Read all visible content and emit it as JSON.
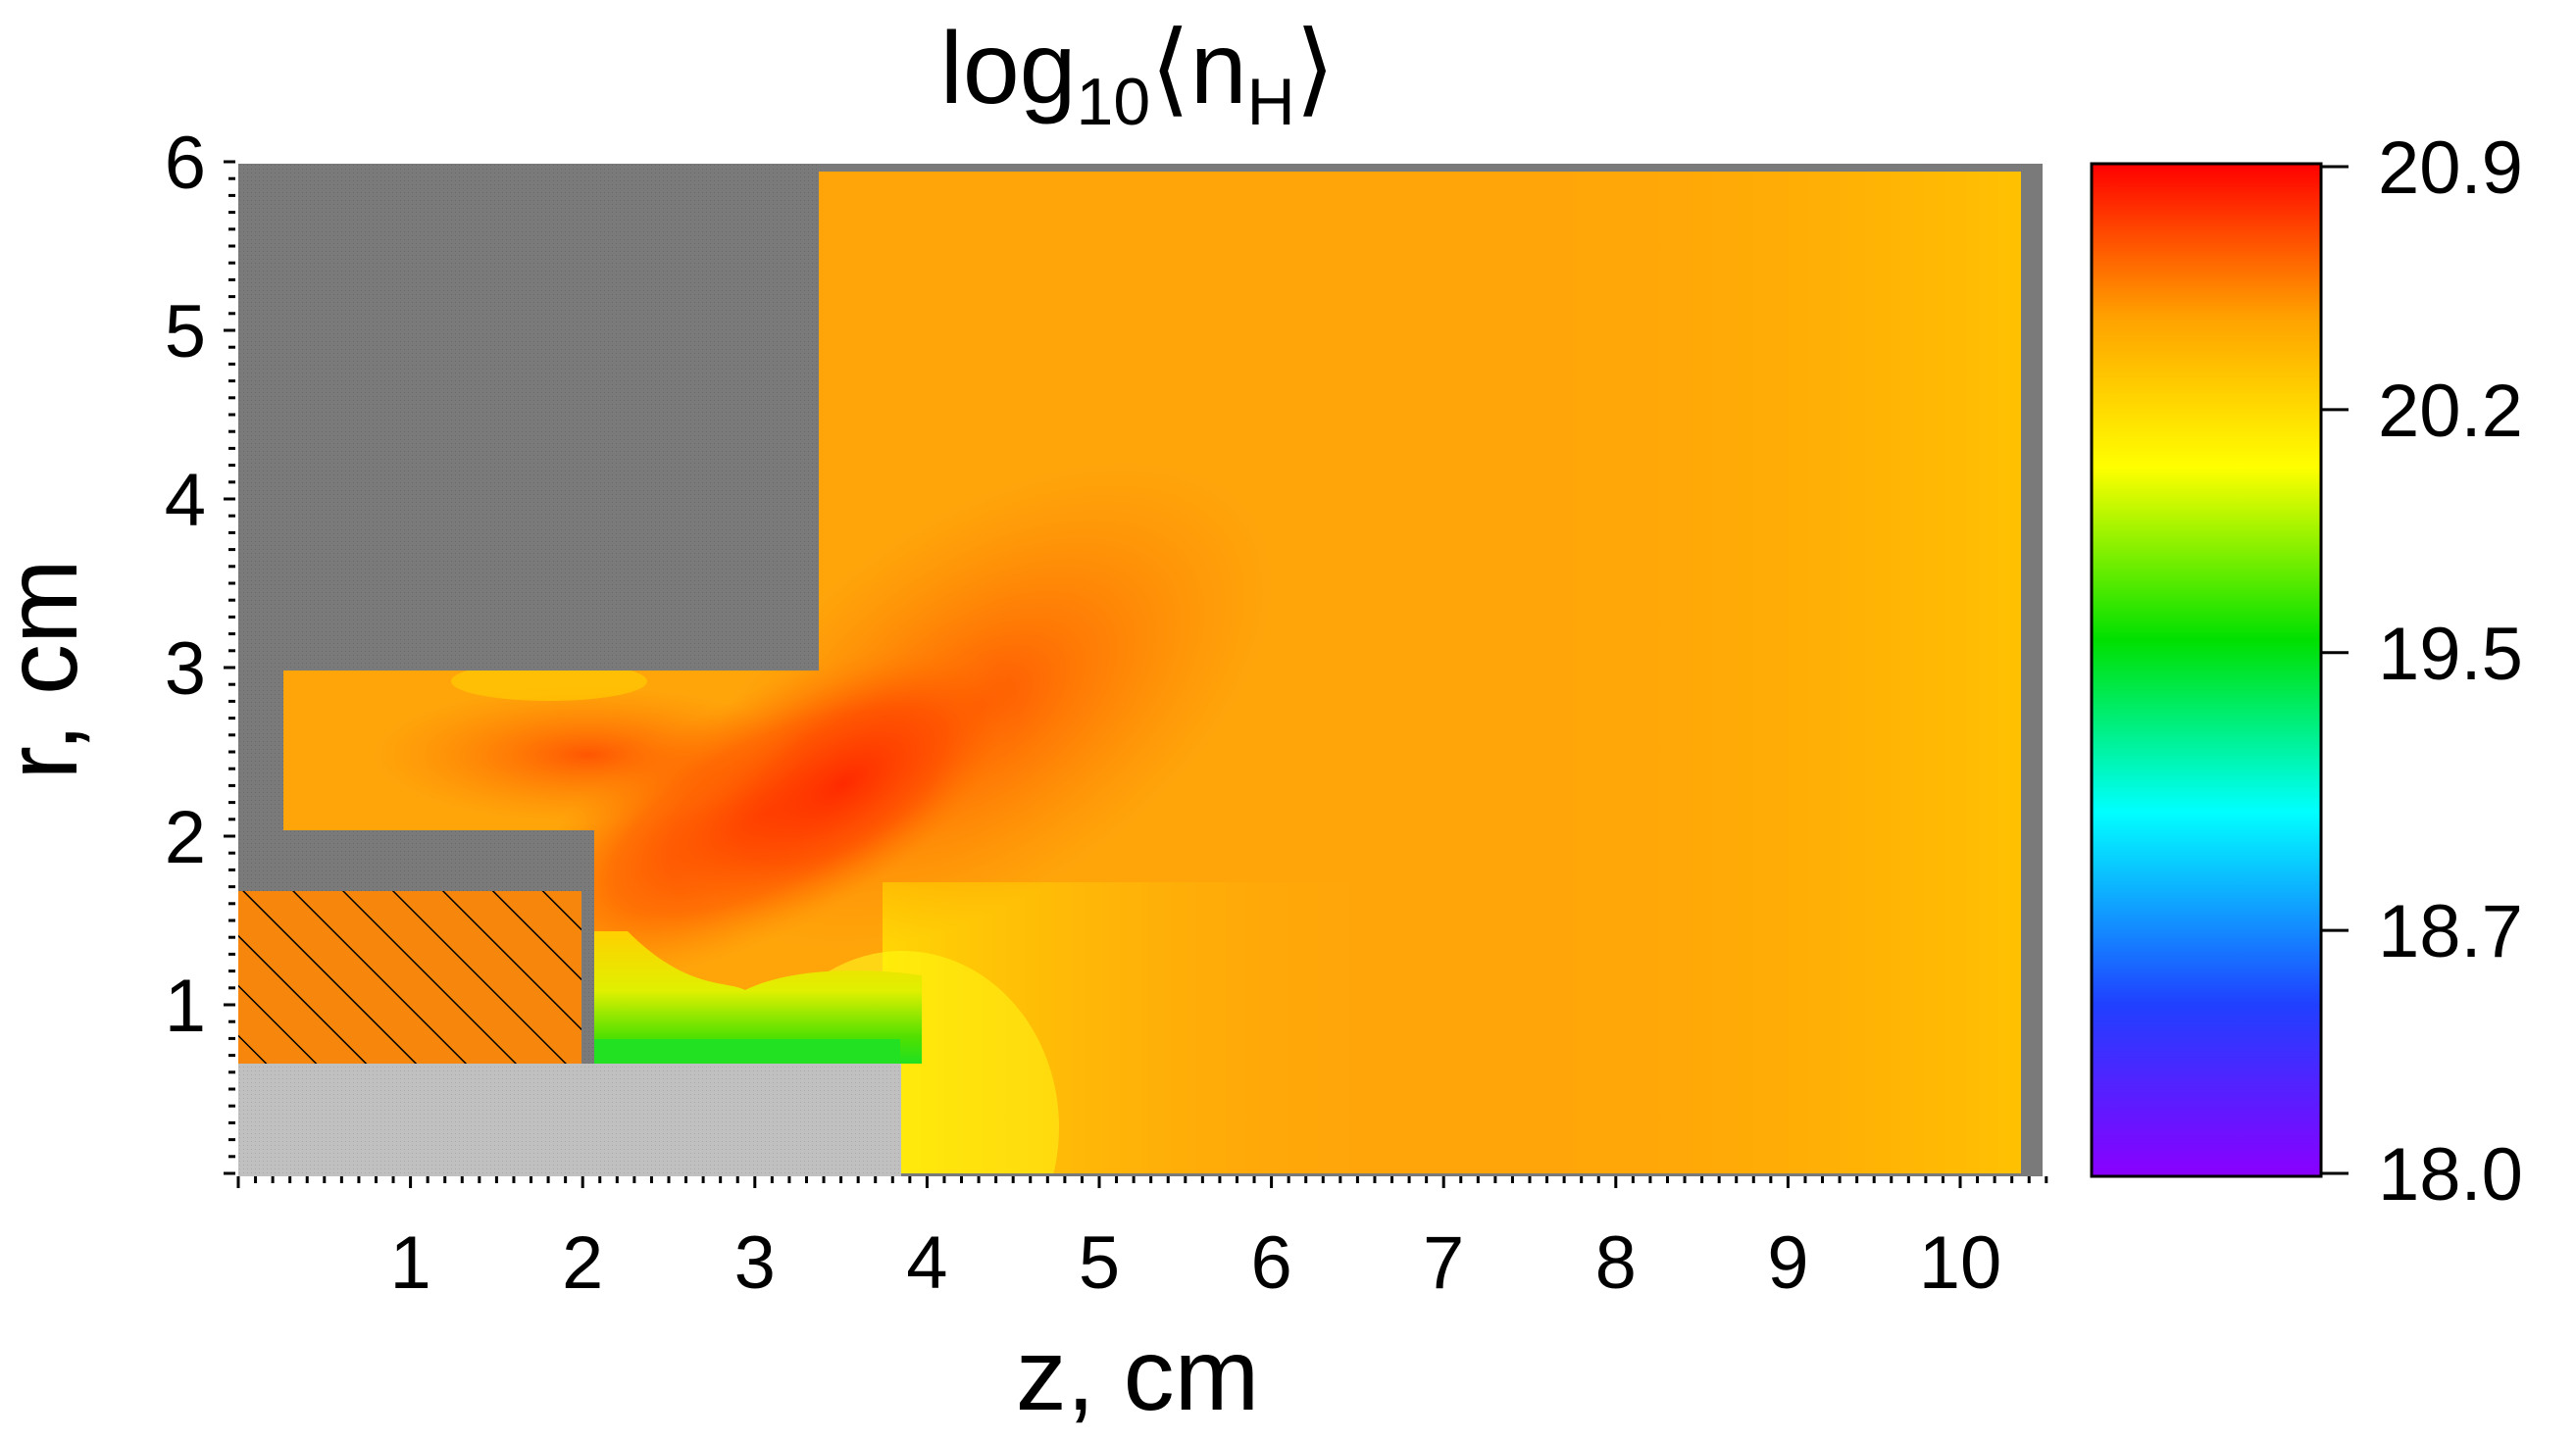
{
  "chart_data": {
    "type": "heatmap",
    "title": {
      "base": "log",
      "sub": "10",
      "open": "⟨n",
      "sub2": "H",
      "close": "⟩"
    },
    "xlabel": "z, cm",
    "ylabel": "r, cm",
    "xlim": [
      0,
      10.5
    ],
    "ylim": [
      0,
      6
    ],
    "x_ticks": [
      1,
      2,
      3,
      4,
      5,
      6,
      7,
      8,
      9,
      10
    ],
    "y_ticks": [
      1,
      2,
      3,
      4,
      5,
      6
    ],
    "colorbar": {
      "min": 18.0,
      "max": 20.9,
      "ticks": [
        "18.0",
        "18.7",
        "19.5",
        "20.2",
        "20.9"
      ],
      "colormap": [
        "#8a00ff",
        "#2040ff",
        "#00ffff",
        "#00e000",
        "#ffff00",
        "#ffa000",
        "#ff0000"
      ]
    },
    "field_description_values": [
      {
        "region": "bulk domain",
        "value": 20.55
      },
      {
        "region": "jet core near z=3,r=2",
        "value": 20.85
      },
      {
        "region": "gap between electrodes",
        "value": 19.9
      },
      {
        "region": "near axis region z=4",
        "value": 20.2
      }
    ],
    "colors": {
      "solid_dark": "#7a7a7a",
      "solid_light": "#bdbdbd",
      "hatch_fill": "#f7870c",
      "field_base": "#ffa50a"
    }
  }
}
